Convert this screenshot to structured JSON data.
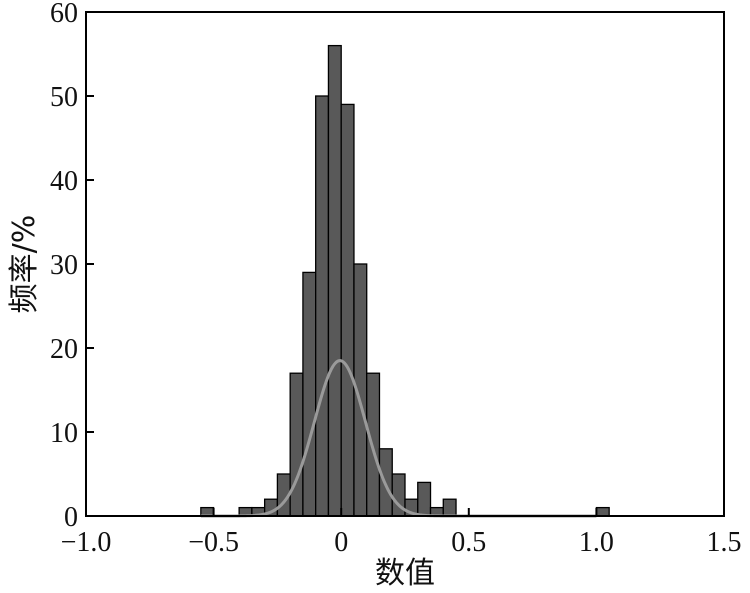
{
  "chart_data": {
    "type": "bar",
    "xlabel": "数值",
    "ylabel": "频率/%",
    "xlim": [
      -1.0,
      1.5
    ],
    "ylim": [
      0,
      60
    ],
    "xticks": [
      "−1.0",
      "−0.5",
      "0",
      "0.5",
      "1.0",
      "1.5"
    ],
    "xtick_values": [
      -1.0,
      -0.5,
      0,
      0.5,
      1.0,
      1.5
    ],
    "yticks": [
      "0",
      "10",
      "20",
      "30",
      "40",
      "50",
      "60"
    ],
    "ytick_values": [
      0,
      10,
      20,
      30,
      40,
      50,
      60
    ],
    "grid": false,
    "legend": "none",
    "bin_width": 0.05,
    "bins": [
      {
        "x0": -0.55,
        "x1": -0.5,
        "value": 1
      },
      {
        "x0": -0.4,
        "x1": -0.35,
        "value": 1
      },
      {
        "x0": -0.35,
        "x1": -0.3,
        "value": 1
      },
      {
        "x0": -0.3,
        "x1": -0.25,
        "value": 2
      },
      {
        "x0": -0.25,
        "x1": -0.2,
        "value": 5
      },
      {
        "x0": -0.2,
        "x1": -0.15,
        "value": 17
      },
      {
        "x0": -0.15,
        "x1": -0.1,
        "value": 29
      },
      {
        "x0": -0.1,
        "x1": -0.05,
        "value": 50
      },
      {
        "x0": -0.05,
        "x1": 0.0,
        "value": 56
      },
      {
        "x0": 0.0,
        "x1": 0.05,
        "value": 49
      },
      {
        "x0": 0.05,
        "x1": 0.1,
        "value": 30
      },
      {
        "x0": 0.1,
        "x1": 0.15,
        "value": 17
      },
      {
        "x0": 0.15,
        "x1": 0.2,
        "value": 8
      },
      {
        "x0": 0.2,
        "x1": 0.25,
        "value": 5
      },
      {
        "x0": 0.25,
        "x1": 0.3,
        "value": 2
      },
      {
        "x0": 0.3,
        "x1": 0.35,
        "value": 4
      },
      {
        "x0": 0.35,
        "x1": 0.4,
        "value": 1
      },
      {
        "x0": 0.4,
        "x1": 0.45,
        "value": 2
      },
      {
        "x0": 1.0,
        "x1": 1.05,
        "value": 1
      }
    ],
    "curve": {
      "kind": "normal",
      "mean": -0.005,
      "sd": 0.1,
      "peak": 18.5,
      "x_range": [
        -0.55,
        1.0
      ]
    },
    "colors": {
      "bar_fill": "#595959",
      "bar_stroke": "#000000",
      "curve": "#9a9a9a"
    }
  }
}
